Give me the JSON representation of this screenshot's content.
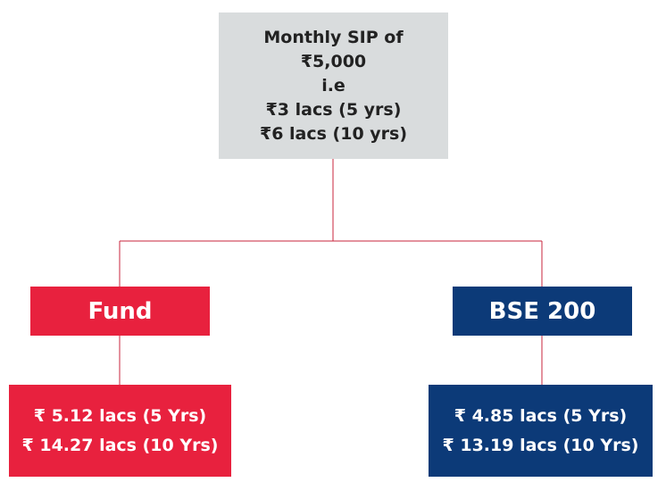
{
  "root": {
    "lines": [
      "Monthly SIP of",
      "₹5,000",
      "i.e",
      "₹3 lacs (5 yrs)",
      "₹6 lacs (10 yrs)"
    ]
  },
  "fund": {
    "label": "Fund",
    "values": [
      "₹ 5.12 lacs (5 Yrs)",
      "₹ 14.27 lacs (10 Yrs)"
    ]
  },
  "bse": {
    "label": "BSE 200",
    "values": [
      "₹ 4.85 lacs (5 Yrs)",
      "₹ 13.19 lacs (10 Yrs)"
    ]
  },
  "colors": {
    "connector": "#c8243c",
    "fund": "#e8213e",
    "bse": "#0c3a78",
    "root": "#d9dcdd"
  }
}
